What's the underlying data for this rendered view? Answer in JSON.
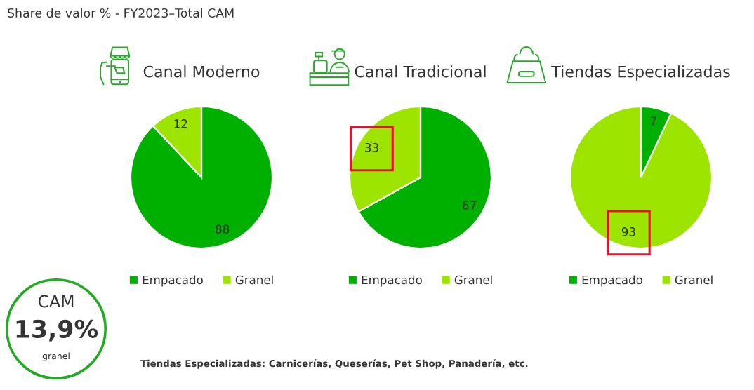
{
  "chart_data": [
    {
      "type": "other",
      "title": "Share de valor % - FY2023–Total CAM",
      "annotations": [
        "Tiendas Especializadas: Carnicerías, Queserías, Pet Shop, Panadería, etc."
      ]
    },
    {
      "type": "pie",
      "title": "Canal Moderno",
      "categories": [
        "Empacado",
        "Granel"
      ],
      "values": [
        88,
        12
      ],
      "colors": [
        "#00b000",
        "#9de500"
      ],
      "data_labels": true,
      "legend": "bottom"
    },
    {
      "type": "pie",
      "title": "Canal Tradicional",
      "categories": [
        "Empacado",
        "Granel"
      ],
      "values": [
        67,
        33
      ],
      "colors": [
        "#00b000",
        "#9de500"
      ],
      "data_labels": true,
      "legend": "bottom"
    },
    {
      "type": "pie",
      "title": "Tiendas Especializadas",
      "categories": [
        "Empacado",
        "Granel"
      ],
      "values": [
        7,
        93
      ],
      "colors": [
        "#00b000",
        "#9de500"
      ],
      "data_labels": true,
      "legend": "bottom"
    },
    {
      "type": "other",
      "title": "CAM",
      "annotations": [
        "13,9%",
        "granel"
      ]
    }
  ]
}
